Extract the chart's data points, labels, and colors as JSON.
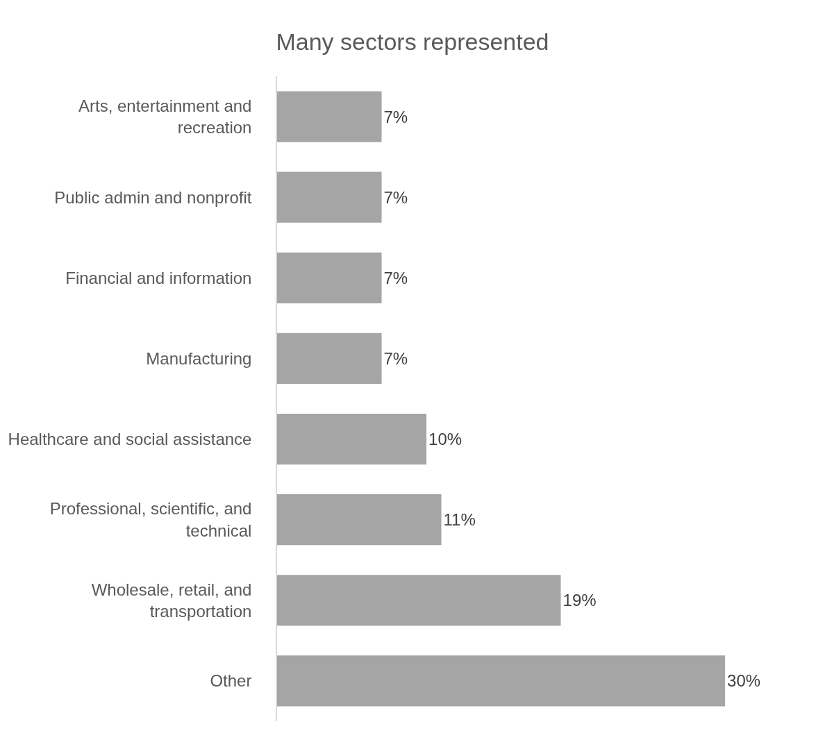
{
  "chart_data": {
    "type": "bar",
    "orientation": "horizontal",
    "title": "Many sectors represented",
    "categories": [
      "Arts, entertainment and recreation",
      "Public admin and nonprofit",
      "Financial and information",
      "Manufacturing",
      "Healthcare and social assistance",
      "Professional, scientific, and technical",
      "Wholesale, retail, and transportation",
      "Other"
    ],
    "values": [
      7,
      7,
      7,
      7,
      10,
      11,
      19,
      30
    ],
    "value_labels": [
      "7%",
      "7%",
      "7%",
      "7%",
      "10%",
      "11%",
      "19%",
      "30%"
    ],
    "color": "#a5a5a5"
  }
}
